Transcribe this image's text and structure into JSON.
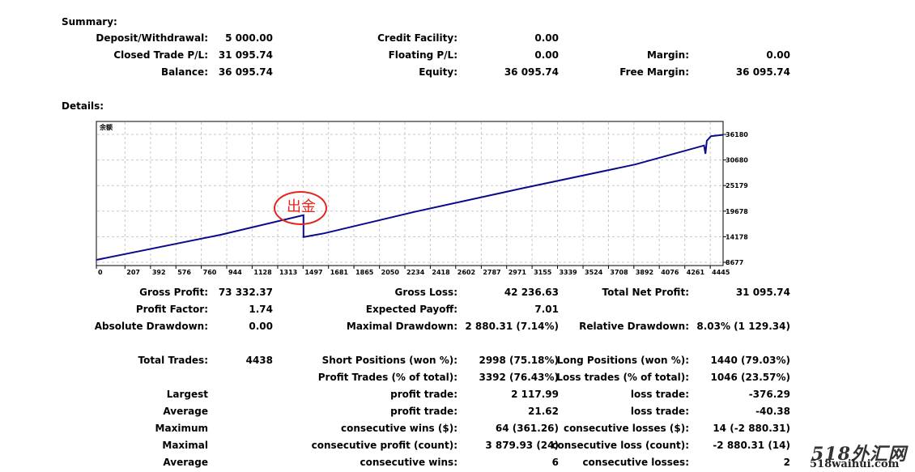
{
  "summary": {
    "title": "Summary:",
    "deposit_label": "Deposit/Withdrawal:",
    "deposit_value": "5 000.00",
    "closed_label": "Closed Trade P/L:",
    "closed_value": "31 095.74",
    "balance_label": "Balance:",
    "balance_value": "36 095.74",
    "credit_label": "Credit Facility:",
    "credit_value": "0.00",
    "floating_label": "Floating P/L:",
    "floating_value": "0.00",
    "equity_label": "Equity:",
    "equity_value": "36 095.74",
    "margin_label": "Margin:",
    "margin_value": "0.00",
    "free_margin_label": "Free Margin:",
    "free_margin_value": "36 095.74"
  },
  "details_title": "Details:",
  "annotation": "出金",
  "chart_data": {
    "type": "line",
    "title": "余额",
    "x_ticks": [
      "0",
      "207",
      "392",
      "576",
      "760",
      "944",
      "1128",
      "1313",
      "1497",
      "1681",
      "1865",
      "2050",
      "2234",
      "2418",
      "2602",
      "2787",
      "2971",
      "3155",
      "3339",
      "3524",
      "3708",
      "3892",
      "4076",
      "4261",
      "4445"
    ],
    "y_ticks": [
      "36180",
      "30680",
      "25179",
      "19678",
      "14178",
      "8677"
    ],
    "xlim": [
      0,
      4538
    ],
    "ylim": [
      8677,
      36180
    ],
    "grid": true,
    "x": [
      0,
      900,
      1500,
      1500,
      1650,
      2300,
      3100,
      3900,
      4400,
      4410,
      4420,
      4450,
      4538
    ],
    "y": [
      9200,
      14600,
      18800,
      14100,
      14900,
      19500,
      24700,
      29700,
      33800,
      32000,
      34800,
      35800,
      36095
    ]
  },
  "stats": {
    "gross_profit_label": "Gross Profit:",
    "gross_profit_value": "73 332.37",
    "gross_loss_label": "Gross Loss:",
    "gross_loss_value": "42 236.63",
    "total_net_label": "Total Net Profit:",
    "total_net_value": "31 095.74",
    "profit_factor_label": "Profit Factor:",
    "profit_factor_value": "1.74",
    "expected_payoff_label": "Expected Payoff:",
    "expected_payoff_value": "7.01",
    "abs_dd_label": "Absolute Drawdown:",
    "abs_dd_value": "0.00",
    "max_dd_label": "Maximal Drawdown:",
    "max_dd_value": "2 880.31 (7.14%)",
    "rel_dd_label": "Relative Drawdown:",
    "rel_dd_value": "8.03% (1 129.34)",
    "total_trades_label": "Total Trades:",
    "total_trades_value": "4438",
    "short_label": "Short Positions (won %):",
    "short_value": "2998 (75.18%)",
    "long_label": "Long Positions (won %):",
    "long_value": "1440 (79.03%)",
    "profit_trades_label": "Profit Trades (% of total):",
    "profit_trades_value": "3392 (76.43%)",
    "loss_trades_label": "Loss trades (% of total):",
    "loss_trades_value": "1046 (23.57%)",
    "largest_label": "Largest",
    "largest_profit_label": "profit trade:",
    "largest_profit_value": "2 117.99",
    "largest_loss_label": "loss trade:",
    "largest_loss_value": "-376.29",
    "average_label": "Average",
    "average_profit_label": "profit trade:",
    "average_profit_value": "21.62",
    "average_loss_label": "loss trade:",
    "average_loss_value": "-40.38",
    "maximum_label": "Maximum",
    "max_cons_wins_label": "consecutive wins ($):",
    "max_cons_wins_value": "64 (361.26)",
    "max_cons_losses_label": "consecutive losses ($):",
    "max_cons_losses_value": "14 (-2 880.31)",
    "maximal_label": "Maximal",
    "maximal_profit_label": "consecutive profit (count):",
    "maximal_profit_value": "3 879.93 (24)",
    "maximal_loss_label": "consecutive loss (count):",
    "maximal_loss_value": "-2 880.31 (14)",
    "average2_label": "Average",
    "avg_cons_wins_label": "consecutive wins:",
    "avg_cons_wins_value": "6",
    "avg_cons_losses_label": "consecutive losses:",
    "avg_cons_losses_value": "2"
  },
  "watermark": {
    "line1": "518外汇网",
    "line2": "518waihui.com"
  },
  "colors": {
    "line": "#0a0a8c",
    "annotation": "#e3231c",
    "grid": "#c8c8c8"
  }
}
